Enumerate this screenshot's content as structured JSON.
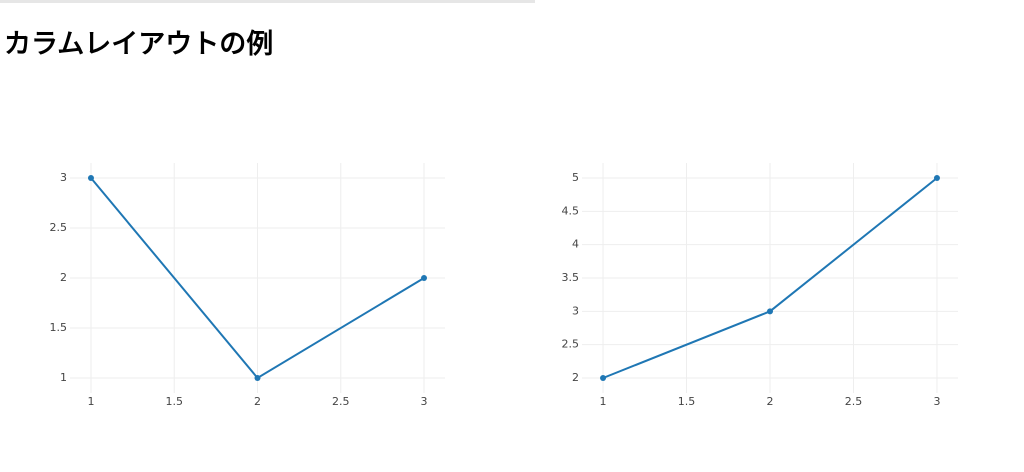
{
  "title": "カラムレイアウトの例",
  "chart_data": [
    {
      "type": "line",
      "x": [
        1,
        2,
        3
      ],
      "series": [
        {
          "color": "#1f77b4",
          "values": [
            3,
            1,
            2
          ]
        }
      ],
      "xlim": [
        0.874,
        3.126
      ],
      "ylim": [
        0.85,
        3.15
      ],
      "xticks": [
        1,
        1.5,
        2,
        2.5,
        3
      ],
      "yticks": [
        1,
        1.5,
        2,
        2.5,
        3
      ],
      "grid": true
    },
    {
      "type": "line",
      "x": [
        1,
        2,
        3
      ],
      "series": [
        {
          "color": "#1f77b4",
          "values": [
            2,
            3,
            5
          ]
        }
      ],
      "xlim": [
        0.874,
        3.126
      ],
      "ylim": [
        1.775,
        5.225
      ],
      "xticks": [
        1,
        1.5,
        2,
        2.5,
        3
      ],
      "yticks": [
        2,
        2.5,
        3,
        3.5,
        4,
        4.5,
        5
      ],
      "grid": true
    }
  ]
}
